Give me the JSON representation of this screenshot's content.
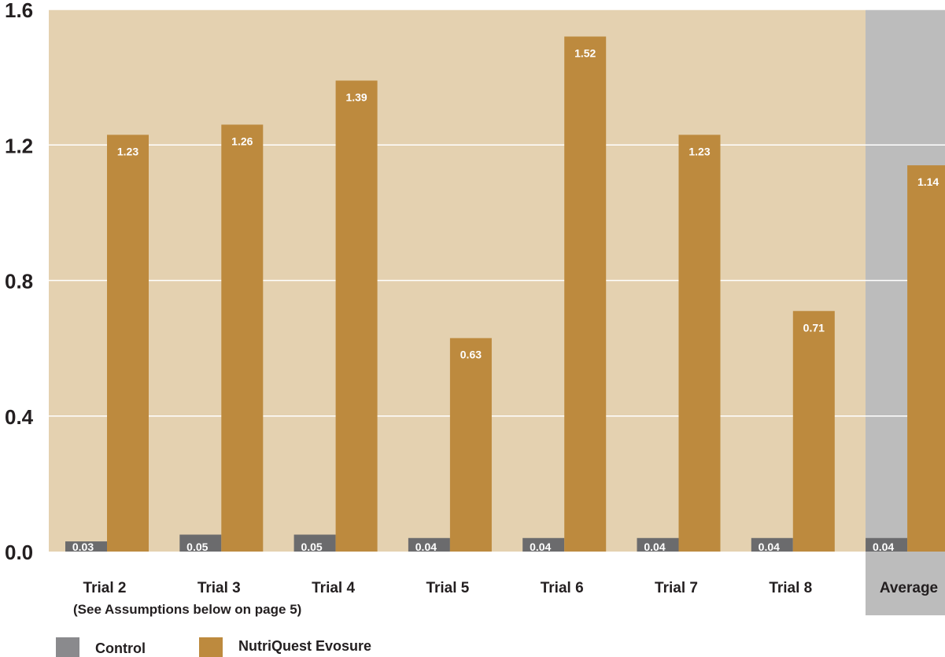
{
  "chart_data": {
    "type": "bar",
    "categories": [
      "Trial 2",
      "Trial 3",
      "Trial 4",
      "Trial 5",
      "Trial 6",
      "Trial 7",
      "Trial 8",
      "Average"
    ],
    "category_note": "(See Assumptions below on page 5)",
    "series": [
      {
        "name": "Control",
        "values": [
          0.03,
          0.05,
          0.05,
          0.04,
          0.04,
          0.04,
          0.04,
          0.04
        ],
        "labels": [
          "0.03",
          "0.05",
          "0.05",
          "0.04",
          "0.04",
          "0.04",
          "0.04",
          "0.04"
        ]
      },
      {
        "name": "NutriQuest Evosure",
        "values": [
          1.23,
          1.26,
          1.39,
          0.63,
          1.52,
          1.23,
          0.71,
          1.14
        ],
        "labels": [
          "1.23",
          "1.26",
          "1.39",
          "0.63",
          "1.52",
          "1.23",
          "0.71",
          "1.14"
        ]
      }
    ],
    "y_ticks": [
      "0.0",
      "0.4",
      "0.8",
      "1.2",
      "1.6"
    ],
    "ylim": [
      0,
      1.6
    ],
    "grid": true,
    "legend_position": "bottom-left",
    "title": "",
    "xlabel": "",
    "ylabel": ""
  },
  "colors": {
    "plot_background": "#e4d1b0",
    "average_background": "#bcbcbc",
    "control": "#6b6b6d",
    "evosure": "#bd8a3e",
    "legend_control": "#8a8a8d",
    "gridline": "#ffffff",
    "axis_text": "#231f20",
    "bar_label_text": "#ffffff"
  }
}
